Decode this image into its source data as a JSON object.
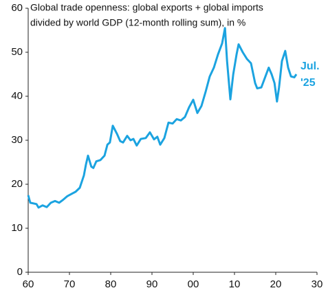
{
  "chart_data": {
    "type": "line",
    "title": [
      "Global trade openness: global exports + global imports",
      "divided by world GDP (12-month rolling sum), in %"
    ],
    "annotation": [
      "Jul.",
      "'25"
    ],
    "xlim": [
      1960,
      2030
    ],
    "xticks": [
      {
        "value": 1960,
        "label": "60"
      },
      {
        "value": 1970,
        "label": "70"
      },
      {
        "value": 1980,
        "label": "80"
      },
      {
        "value": 1990,
        "label": "90"
      },
      {
        "value": 2000,
        "label": "00"
      },
      {
        "value": 2010,
        "label": "10"
      },
      {
        "value": 2020,
        "label": "20"
      },
      {
        "value": 2030,
        "label": "30"
      }
    ],
    "ylim": [
      0,
      60
    ],
    "yticks": [
      0,
      10,
      20,
      30,
      40,
      50,
      60
    ],
    "series": [
      {
        "color": "#1ba3e0",
        "x": [
          1960,
          1960.5,
          1962,
          1962.5,
          1963.5,
          1964.5,
          1965.5,
          1966.5,
          1967.5,
          1968.5,
          1969.5,
          1970.5,
          1971.5,
          1972.5,
          1973.5,
          1974,
          1974.5,
          1975.3,
          1975.8,
          1976.5,
          1977.5,
          1978.5,
          1979.2,
          1979.8,
          1980.5,
          1981.5,
          1982.3,
          1983,
          1984,
          1984.8,
          1985.5,
          1986.3,
          1987.3,
          1988.5,
          1989.5,
          1990.5,
          1991.3,
          1992,
          1993,
          1994,
          1995,
          1996,
          1997,
          1998,
          1999,
          2000,
          2001,
          2002,
          2003,
          2004,
          2005,
          2006,
          2007,
          2007.7,
          2008.2,
          2009,
          2009.7,
          2010.5,
          2011,
          2012,
          2013,
          2014,
          2015,
          2015.5,
          2016.5,
          2017.5,
          2018.3,
          2019,
          2019.7,
          2020.3,
          2020.8,
          2021.5,
          2022.3,
          2023,
          2023.7,
          2024.5,
          2025
        ],
        "values": [
          17.5,
          15.8,
          15.5,
          14.7,
          15.2,
          14.8,
          15.8,
          16.2,
          15.8,
          16.5,
          17.3,
          17.8,
          18.3,
          19.2,
          22,
          24.5,
          26.5,
          24,
          23.7,
          25.2,
          25.5,
          26.5,
          29,
          29.5,
          33.3,
          31.5,
          29.8,
          29.5,
          31,
          30,
          30.3,
          28.8,
          30.3,
          30.5,
          31.8,
          30.2,
          30.8,
          29,
          30.5,
          34,
          33.8,
          34.8,
          34.5,
          35.3,
          37.5,
          39.2,
          36.2,
          37.8,
          41,
          44.5,
          46.5,
          49.5,
          52,
          55.5,
          48,
          39.3,
          45,
          49.5,
          51.8,
          50,
          48.5,
          47.5,
          43,
          41.8,
          42,
          44.5,
          46.5,
          45,
          43,
          38.8,
          42,
          48,
          50.3,
          46.5,
          44.5,
          44.3,
          45
        ]
      }
    ]
  }
}
